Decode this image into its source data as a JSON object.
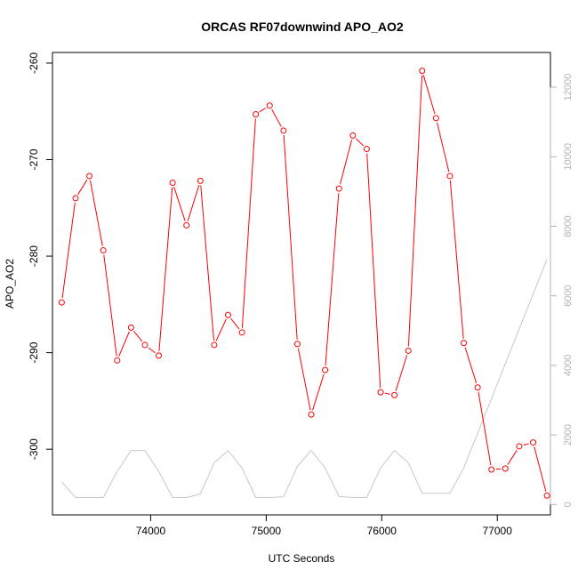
{
  "chart_data": {
    "type": "line",
    "title": "ORCAS RF07downwind APO_AO2",
    "xlabel": "UTC Seconds",
    "ylabel": "APO_AO2",
    "xlim": [
      73150,
      77460
    ],
    "ylim": [
      -306.8,
      -258.9
    ],
    "y2lim": [
      -300,
      13000
    ],
    "x_ticks": [
      74000,
      75000,
      76000,
      77000
    ],
    "y_ticks": [
      -300,
      -290,
      -280,
      -270,
      -260
    ],
    "y2_ticks": [
      0,
      2000,
      4000,
      6000,
      8000,
      10000,
      12000
    ],
    "grid": false,
    "series": [
      {
        "color": "#ff0000",
        "axis": "left",
        "style": "line-points",
        "x": [
          73230,
          73350,
          73470,
          73590,
          73710,
          73830,
          73950,
          74070,
          74190,
          74310,
          74430,
          74550,
          74670,
          74790,
          74910,
          75030,
          75150,
          75270,
          75390,
          75510,
          75630,
          75750,
          75870,
          75990,
          76110,
          76230,
          76350,
          76470,
          76590,
          76710,
          76830,
          76950,
          77070,
          77190,
          77310,
          77430
        ],
        "values": [
          -284.8,
          -274.0,
          -271.7,
          -279.4,
          -290.8,
          -287.4,
          -289.2,
          -290.3,
          -272.4,
          -276.8,
          -272.2,
          -289.2,
          -286.1,
          -287.9,
          -265.3,
          -264.4,
          -267.0,
          -289.1,
          -296.4,
          -291.8,
          -273.0,
          -267.5,
          -268.9,
          -294.1,
          -294.4,
          -289.8,
          -260.8,
          -265.7,
          -271.7,
          -289.0,
          -293.6,
          -302.1,
          -302.0,
          -299.7,
          -299.3,
          -304.8
        ]
      },
      {
        "color": "#c8c8c8",
        "axis": "right",
        "style": "line",
        "x": [
          73230,
          73350,
          73470,
          73590,
          73710,
          73830,
          73950,
          74070,
          74190,
          74310,
          74430,
          74550,
          74670,
          74790,
          74910,
          75030,
          75150,
          75270,
          75390,
          75510,
          75630,
          75750,
          75870,
          75990,
          76110,
          76230,
          76350,
          76470,
          76590,
          76710,
          76830,
          76950,
          77070,
          77190,
          77310,
          77430
        ],
        "values": [
          650,
          200,
          200,
          200,
          950,
          1550,
          1550,
          950,
          200,
          200,
          300,
          1200,
          1550,
          1050,
          200,
          200,
          220,
          1100,
          1550,
          1050,
          230,
          200,
          200,
          1050,
          1550,
          1200,
          320,
          320,
          320,
          1050,
          2050,
          3050,
          4050,
          5050,
          6050,
          7050
        ]
      }
    ]
  }
}
